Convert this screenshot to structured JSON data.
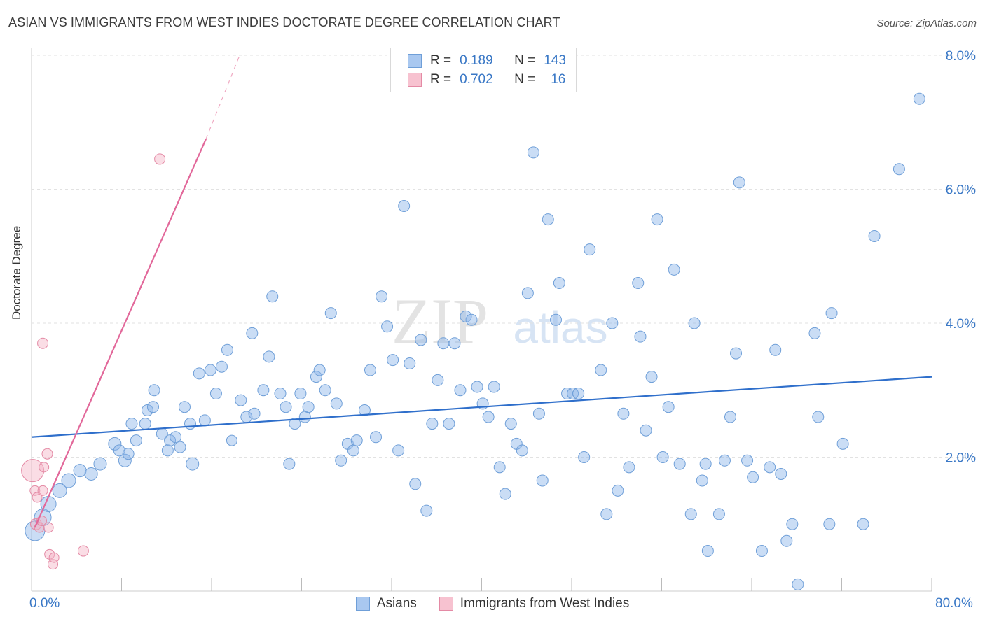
{
  "title": "ASIAN VS IMMIGRANTS FROM WEST INDIES DOCTORATE DEGREE CORRELATION CHART",
  "source": "Source: ZipAtlas.com",
  "watermark": {
    "zip": "ZIP",
    "atlas": "atlas"
  },
  "legend": {
    "rows": [
      {
        "r_label": "R =",
        "r_value": "0.189",
        "n_label": "N =",
        "n_value": "143",
        "color": "#a9c8f0",
        "border": "#6f9fd8"
      },
      {
        "r_label": "R =",
        "r_value": "0.702",
        "n_label": "N =",
        "n_value": "16",
        "color": "#f7c2d0",
        "border": "#e48aa5"
      }
    ]
  },
  "bottom_legend": [
    {
      "label": "Asians",
      "color": "#a9c8f0",
      "border": "#6f9fd8"
    },
    {
      "label": "Immigrants from West Indies",
      "color": "#f7c2d0",
      "border": "#e48aa5"
    }
  ],
  "axis_labels": {
    "x_min": "0.0%",
    "x_max": "80.0%",
    "ylabel": "Doctorate Degree"
  },
  "chart_data": {
    "type": "scatter",
    "title": "ASIAN VS IMMIGRANTS FROM WEST INDIES DOCTORATE DEGREE CORRELATION CHART",
    "xlabel": "",
    "ylabel": "Doctorate Degree",
    "xlim": [
      0,
      80
    ],
    "ylim": [
      0,
      8
    ],
    "y_ticks": [
      2.0,
      4.0,
      6.0,
      8.0
    ],
    "y_tick_labels": [
      "2.0%",
      "4.0%",
      "6.0%",
      "8.0%"
    ],
    "x_tick_labels": [
      "0.0%",
      "80.0%"
    ],
    "grid": true,
    "colors": {
      "asians": "#8ab4e8",
      "asians_line": "#2f6fcb",
      "wi": "#f4b3c6",
      "wi_line": "#e2689a"
    },
    "series": [
      {
        "name": "Asians",
        "r": 0.189,
        "n": 143,
        "trend": {
          "x": [
            0,
            80
          ],
          "y": [
            2.3,
            3.2
          ]
        },
        "points": [
          [
            0.3,
            0.9,
            14
          ],
          [
            1,
            1.1,
            12
          ],
          [
            1.5,
            1.3,
            11
          ],
          [
            2.5,
            1.5,
            10
          ],
          [
            3.3,
            1.65,
            10
          ],
          [
            4.3,
            1.8,
            9
          ],
          [
            5.3,
            1.75,
            9
          ],
          [
            6.1,
            1.9,
            9
          ],
          [
            7.4,
            2.2,
            9
          ],
          [
            7.8,
            2.1,
            8
          ],
          [
            8.3,
            1.95,
            9
          ],
          [
            8.6,
            2.05,
            8
          ],
          [
            9.3,
            2.25,
            8
          ],
          [
            8.9,
            2.5,
            8
          ],
          [
            10.3,
            2.7,
            8
          ],
          [
            10.8,
            2.75,
            8
          ],
          [
            10.1,
            2.5,
            8
          ],
          [
            10.9,
            3.0,
            8
          ],
          [
            11.6,
            2.35,
            8
          ],
          [
            12.3,
            2.25,
            8
          ],
          [
            12.1,
            2.1,
            8
          ],
          [
            12.8,
            2.3,
            8
          ],
          [
            13.2,
            2.15,
            8
          ],
          [
            13.6,
            2.75,
            8
          ],
          [
            14.1,
            2.5,
            8
          ],
          [
            14.3,
            1.9,
            9
          ],
          [
            14.9,
            3.25,
            8
          ],
          [
            15.4,
            2.55,
            8
          ],
          [
            15.9,
            3.3,
            8
          ],
          [
            16.4,
            2.95,
            8
          ],
          [
            16.9,
            3.35,
            8
          ],
          [
            17.4,
            3.6,
            8
          ],
          [
            17.8,
            2.25,
            7.5
          ],
          [
            18.6,
            2.85,
            8
          ],
          [
            19.1,
            2.6,
            8
          ],
          [
            19.6,
            3.85,
            8
          ],
          [
            19.8,
            2.65,
            8
          ],
          [
            20.6,
            3.0,
            8
          ],
          [
            21.1,
            3.5,
            8
          ],
          [
            21.4,
            4.4,
            8
          ],
          [
            22.1,
            2.95,
            8
          ],
          [
            22.6,
            2.75,
            8
          ],
          [
            22.9,
            1.9,
            8
          ],
          [
            23.4,
            2.5,
            8
          ],
          [
            23.9,
            2.95,
            8
          ],
          [
            24.3,
            2.6,
            8
          ],
          [
            24.6,
            2.75,
            8
          ],
          [
            25.3,
            3.2,
            8
          ],
          [
            25.6,
            3.3,
            8
          ],
          [
            26.1,
            3.0,
            8
          ],
          [
            26.6,
            4.15,
            8
          ],
          [
            27.1,
            2.8,
            8
          ],
          [
            27.5,
            1.95,
            8
          ],
          [
            28.1,
            2.2,
            8
          ],
          [
            28.6,
            2.1,
            8
          ],
          [
            28.9,
            2.25,
            8
          ],
          [
            29.6,
            2.7,
            8
          ],
          [
            30.1,
            3.3,
            8
          ],
          [
            30.6,
            2.3,
            8
          ],
          [
            31.1,
            4.4,
            8
          ],
          [
            31.6,
            3.95,
            8
          ],
          [
            32.1,
            3.45,
            8
          ],
          [
            32.6,
            2.1,
            8
          ],
          [
            33.1,
            5.75,
            8
          ],
          [
            33.6,
            3.4,
            8
          ],
          [
            34.1,
            1.6,
            8
          ],
          [
            34.6,
            3.75,
            8
          ],
          [
            35.1,
            1.2,
            8
          ],
          [
            35.6,
            2.5,
            8
          ],
          [
            36.1,
            3.15,
            8
          ],
          [
            36.6,
            3.7,
            8
          ],
          [
            37.1,
            2.5,
            8
          ],
          [
            37.6,
            3.7,
            8
          ],
          [
            38.1,
            3.0,
            8
          ],
          [
            38.6,
            4.1,
            8
          ],
          [
            39.1,
            4.05,
            8
          ],
          [
            39.6,
            3.05,
            8
          ],
          [
            40.1,
            2.8,
            8
          ],
          [
            40.6,
            2.6,
            8
          ],
          [
            41.1,
            3.05,
            8
          ],
          [
            41.6,
            1.85,
            8
          ],
          [
            42.1,
            1.45,
            8
          ],
          [
            42.6,
            2.5,
            8
          ],
          [
            43.1,
            2.2,
            8
          ],
          [
            43.6,
            2.1,
            8
          ],
          [
            44.1,
            4.45,
            8
          ],
          [
            44.6,
            6.55,
            8
          ],
          [
            45.1,
            2.65,
            8
          ],
          [
            45.4,
            1.65,
            8
          ],
          [
            45.9,
            5.55,
            8
          ],
          [
            46.6,
            4.05,
            8
          ],
          [
            46.9,
            4.6,
            8
          ],
          [
            47.6,
            2.95,
            8
          ],
          [
            48.1,
            2.95,
            8
          ],
          [
            48.6,
            2.95,
            8
          ],
          [
            49.1,
            2.0,
            8
          ],
          [
            49.6,
            5.1,
            8
          ],
          [
            50.6,
            3.3,
            8
          ],
          [
            51.1,
            1.15,
            8
          ],
          [
            51.6,
            4.0,
            8
          ],
          [
            52.1,
            1.5,
            8
          ],
          [
            52.6,
            2.65,
            8
          ],
          [
            53.1,
            1.85,
            8
          ],
          [
            53.9,
            4.6,
            8
          ],
          [
            54.1,
            3.8,
            8
          ],
          [
            54.6,
            2.4,
            8
          ],
          [
            55.1,
            3.2,
            8
          ],
          [
            55.6,
            5.55,
            8
          ],
          [
            56.1,
            2.0,
            8
          ],
          [
            56.6,
            2.75,
            8
          ],
          [
            57.1,
            4.8,
            8
          ],
          [
            57.6,
            1.9,
            8
          ],
          [
            58.6,
            1.15,
            8
          ],
          [
            58.9,
            4.0,
            8
          ],
          [
            59.6,
            1.65,
            8
          ],
          [
            59.9,
            1.9,
            8
          ],
          [
            60.1,
            0.6,
            8
          ],
          [
            61.1,
            1.15,
            8
          ],
          [
            61.6,
            1.95,
            8
          ],
          [
            62.1,
            2.6,
            8
          ],
          [
            62.6,
            3.55,
            8
          ],
          [
            62.9,
            6.1,
            8
          ],
          [
            63.6,
            1.95,
            8
          ],
          [
            64.1,
            1.7,
            8
          ],
          [
            64.9,
            0.6,
            8
          ],
          [
            65.6,
            1.85,
            8
          ],
          [
            66.1,
            3.6,
            8
          ],
          [
            66.6,
            1.75,
            8
          ],
          [
            67.1,
            0.75,
            8
          ],
          [
            67.6,
            1.0,
            8
          ],
          [
            68.1,
            0.1,
            8
          ],
          [
            69.6,
            3.85,
            8
          ],
          [
            69.9,
            2.6,
            8
          ],
          [
            70.9,
            1.0,
            8
          ],
          [
            71.1,
            4.15,
            8
          ],
          [
            72.1,
            2.2,
            8
          ],
          [
            73.9,
            1.0,
            8
          ],
          [
            74.9,
            5.3,
            8
          ],
          [
            77.1,
            6.3,
            8
          ],
          [
            78.9,
            7.35,
            8
          ]
        ]
      },
      {
        "name": "Immigrants from West Indies",
        "r": 0.702,
        "n": 16,
        "trend": {
          "x": [
            0.3,
            15.5
          ],
          "y": [
            0.95,
            6.75
          ]
        },
        "trend_dashed": {
          "x": [
            15.5,
            18.5
          ],
          "y": [
            6.75,
            8.0
          ]
        },
        "points": [
          [
            0.1,
            1.8,
            16
          ],
          [
            0.3,
            1.5,
            7
          ],
          [
            0.4,
            1.0,
            8
          ],
          [
            0.5,
            1.4,
            7
          ],
          [
            0.7,
            0.95,
            7
          ],
          [
            0.9,
            1.05,
            7
          ],
          [
            1.0,
            1.5,
            7
          ],
          [
            1.1,
            1.85,
            7
          ],
          [
            1.0,
            3.7,
            7.5
          ],
          [
            1.4,
            2.05,
            7.5
          ],
          [
            1.5,
            0.95,
            7
          ],
          [
            1.6,
            0.55,
            7
          ],
          [
            1.9,
            0.4,
            7
          ],
          [
            2.0,
            0.5,
            7
          ],
          [
            4.6,
            0.6,
            7.5
          ],
          [
            11.4,
            6.45,
            7.5
          ]
        ]
      }
    ]
  }
}
